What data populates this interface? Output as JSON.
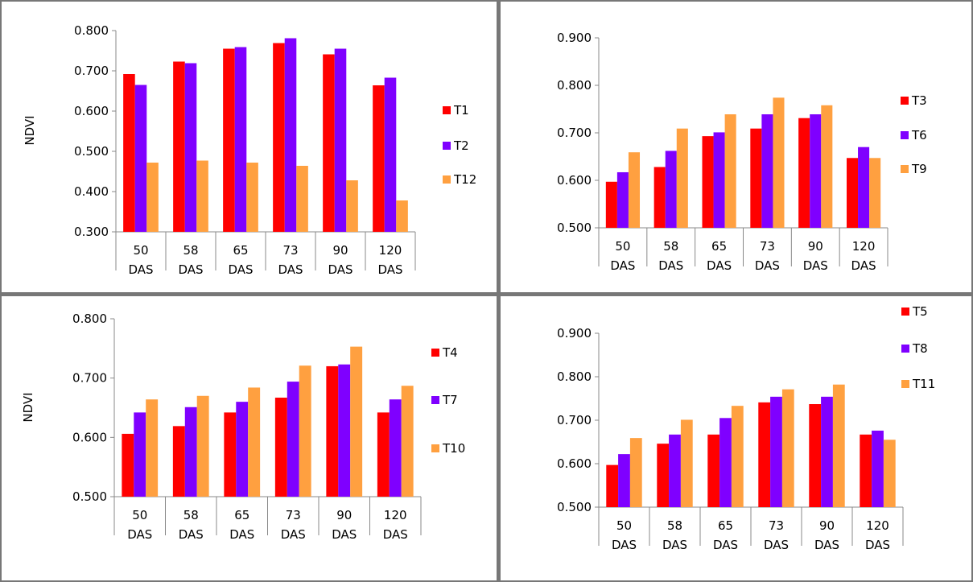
{
  "chart_data": [
    {
      "type": "bar",
      "categories": [
        [
          "50",
          "DAS"
        ],
        [
          "58",
          "DAS"
        ],
        [
          "65",
          "DAS"
        ],
        [
          "73",
          "DAS"
        ],
        [
          "90",
          "DAS"
        ],
        [
          "120",
          "DAS"
        ]
      ],
      "series": [
        {
          "name": "T1",
          "color": "#ff0000",
          "values": [
            0.692,
            0.723,
            0.755,
            0.769,
            0.741,
            0.664
          ]
        },
        {
          "name": "T2",
          "color": "#7f00ff",
          "values": [
            0.665,
            0.719,
            0.759,
            0.781,
            0.755,
            0.683
          ]
        },
        {
          "name": "T12",
          "color": "#ffa040",
          "values": [
            0.472,
            0.477,
            0.472,
            0.464,
            0.428,
            0.378
          ]
        }
      ],
      "ylabel": "NDVI",
      "ylim": [
        0.3,
        0.8
      ],
      "yticks": [
        "0.300",
        "0.400",
        "0.500",
        "0.600",
        "0.700",
        "0.800"
      ],
      "legend": "right",
      "grid": false
    },
    {
      "type": "bar",
      "categories": [
        [
          "50",
          "DAS"
        ],
        [
          "58",
          "DAS"
        ],
        [
          "65",
          "DAS"
        ],
        [
          "73",
          "DAS"
        ],
        [
          "90",
          "DAS"
        ],
        [
          "120",
          "DAS"
        ]
      ],
      "series": [
        {
          "name": "T3",
          "color": "#ff0000",
          "values": [
            0.597,
            0.628,
            0.693,
            0.709,
            0.731,
            0.647
          ]
        },
        {
          "name": "T6",
          "color": "#7f00ff",
          "values": [
            0.617,
            0.662,
            0.701,
            0.739,
            0.739,
            0.67
          ]
        },
        {
          "name": "T9",
          "color": "#ffa040",
          "values": [
            0.659,
            0.709,
            0.739,
            0.774,
            0.758,
            0.647
          ]
        }
      ],
      "ylabel": "",
      "ylim": [
        0.5,
        0.9
      ],
      "yticks": [
        "0.500",
        "0.600",
        "0.700",
        "0.800",
        "0.900"
      ],
      "legend": "right",
      "grid": false
    },
    {
      "type": "bar",
      "categories": [
        [
          "50",
          "DAS"
        ],
        [
          "58",
          "DAS"
        ],
        [
          "65",
          "DAS"
        ],
        [
          "73",
          "DAS"
        ],
        [
          "90",
          "DAS"
        ],
        [
          "120",
          "DAS"
        ]
      ],
      "series": [
        {
          "name": "T4",
          "color": "#ff0000",
          "values": [
            0.606,
            0.619,
            0.642,
            0.667,
            0.72,
            0.642
          ]
        },
        {
          "name": "T7",
          "color": "#7f00ff",
          "values": [
            0.642,
            0.651,
            0.66,
            0.694,
            0.723,
            0.664
          ]
        },
        {
          "name": "T10",
          "color": "#ffa040",
          "values": [
            0.664,
            0.67,
            0.684,
            0.721,
            0.753,
            0.687
          ]
        }
      ],
      "ylabel": "NDVI",
      "ylim": [
        0.5,
        0.8
      ],
      "yticks": [
        "0.500",
        "0.600",
        "0.700",
        "0.800"
      ],
      "legend": "right",
      "grid": false
    },
    {
      "type": "bar",
      "categories": [
        [
          "50",
          "DAS"
        ],
        [
          "58",
          "DAS"
        ],
        [
          "65",
          "DAS"
        ],
        [
          "73",
          "DAS"
        ],
        [
          "90",
          "DAS"
        ],
        [
          "120",
          "DAS"
        ]
      ],
      "series": [
        {
          "name": "T5",
          "color": "#ff0000",
          "values": [
            0.597,
            0.646,
            0.667,
            0.741,
            0.737,
            0.667
          ]
        },
        {
          "name": "T8",
          "color": "#7f00ff",
          "values": [
            0.622,
            0.667,
            0.705,
            0.754,
            0.754,
            0.676
          ]
        },
        {
          "name": "T11",
          "color": "#ffa040",
          "values": [
            0.659,
            0.701,
            0.733,
            0.771,
            0.782,
            0.655
          ]
        }
      ],
      "ylabel": "",
      "ylim": [
        0.5,
        0.9
      ],
      "yticks": [
        "0.500",
        "0.600",
        "0.700",
        "0.800",
        "0.900"
      ],
      "legend": "top-right",
      "grid": false
    }
  ]
}
